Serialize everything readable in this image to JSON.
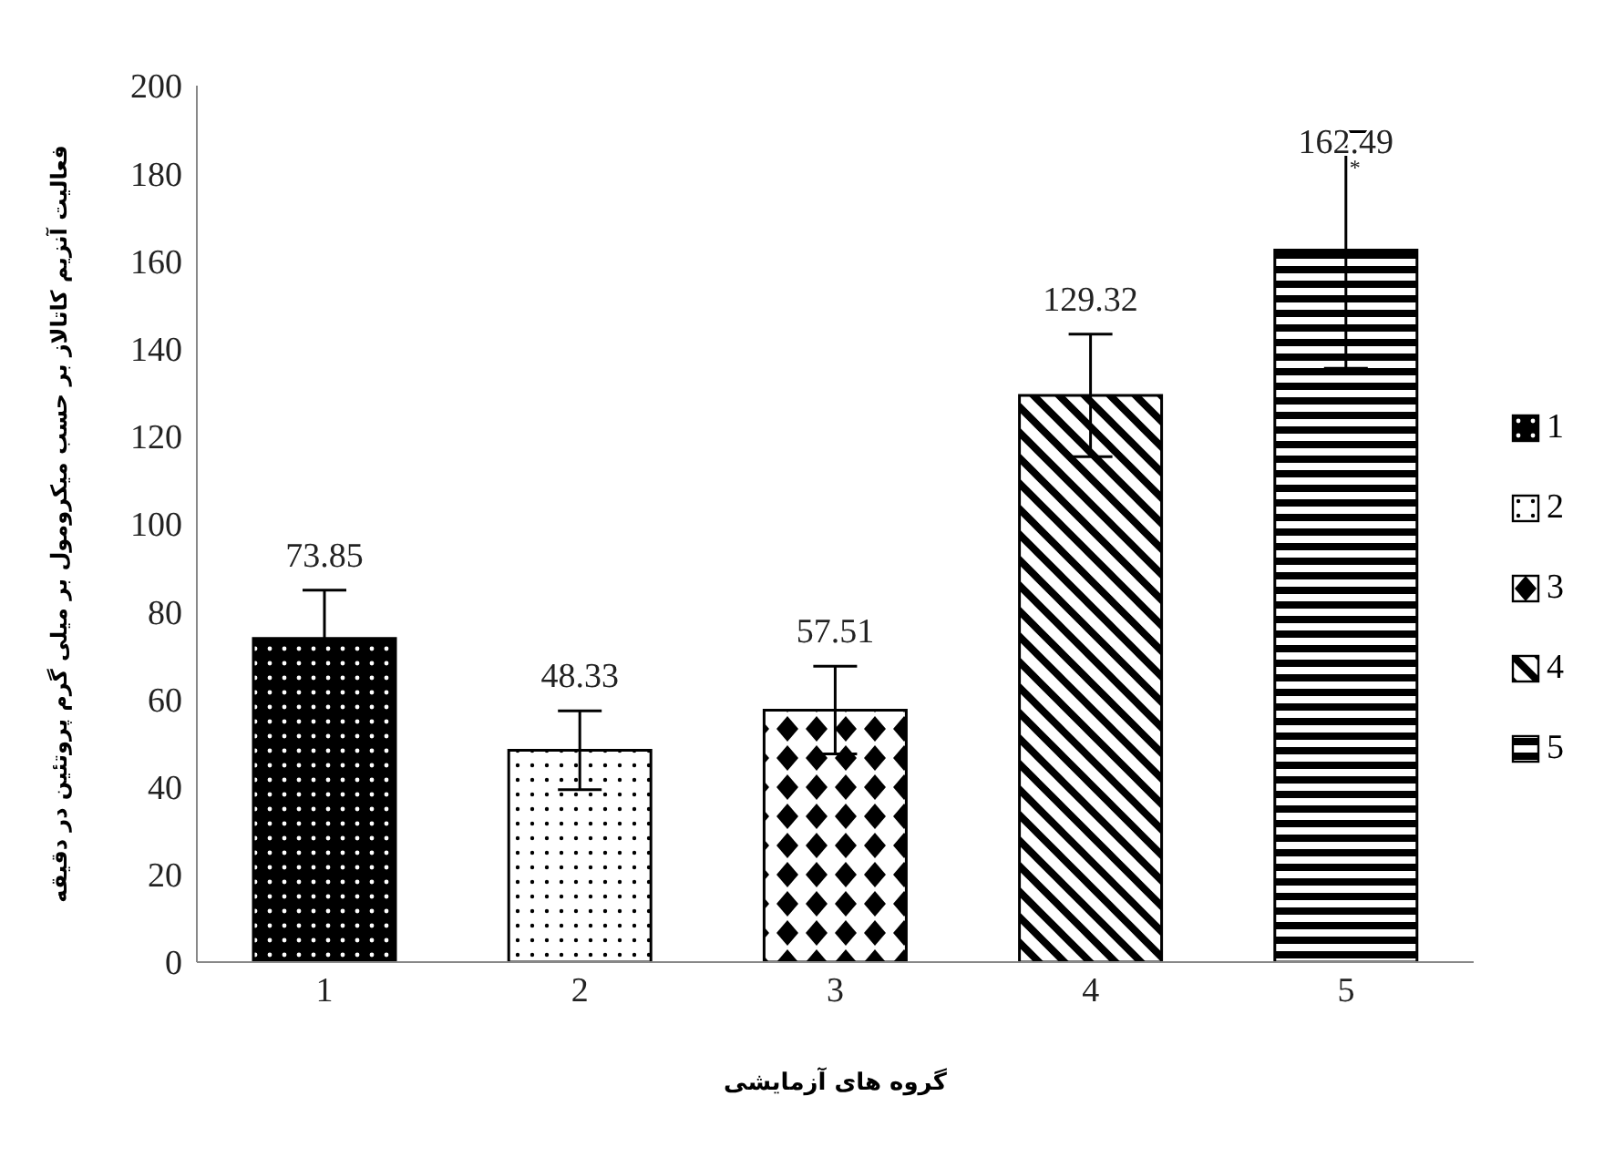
{
  "chart_data": {
    "type": "bar",
    "xlabel": "گروه های آزمایشی",
    "ylabel": "فعالیت آنزیم کاتالاز بر حسب میکرومول بر میلی گرم پروتئین در دقیقه",
    "categories": [
      "1",
      "2",
      "3",
      "4",
      "5"
    ],
    "series": [
      {
        "name": "1",
        "color": "#000000",
        "values": [
          73.85,
          null,
          null,
          null,
          null
        ],
        "errors": [
          11,
          null,
          null,
          null,
          null
        ]
      },
      {
        "name": "2",
        "color": "#000000",
        "values": [
          null,
          48.33,
          null,
          null,
          null
        ],
        "errors": [
          null,
          9,
          null,
          null,
          null
        ]
      },
      {
        "name": "3",
        "color": "#000000",
        "values": [
          null,
          null,
          57.51,
          null,
          null
        ],
        "errors": [
          null,
          null,
          10,
          null,
          null
        ]
      },
      {
        "name": "4",
        "color": "#000000",
        "values": [
          null,
          null,
          null,
          129.32,
          null
        ],
        "errors": [
          null,
          null,
          null,
          14,
          null
        ]
      },
      {
        "name": "5",
        "color": "#000000",
        "values": [
          null,
          null,
          null,
          null,
          162.49
        ],
        "errors": [
          null,
          null,
          null,
          null,
          27
        ]
      }
    ],
    "data_labels": true,
    "annotations": [
      "*"
    ],
    "ylim": [
      0,
      200
    ],
    "yticks": [
      0,
      20,
      40,
      60,
      80,
      100,
      120,
      140,
      160,
      180,
      200
    ],
    "grid": false,
    "legend": "right"
  }
}
